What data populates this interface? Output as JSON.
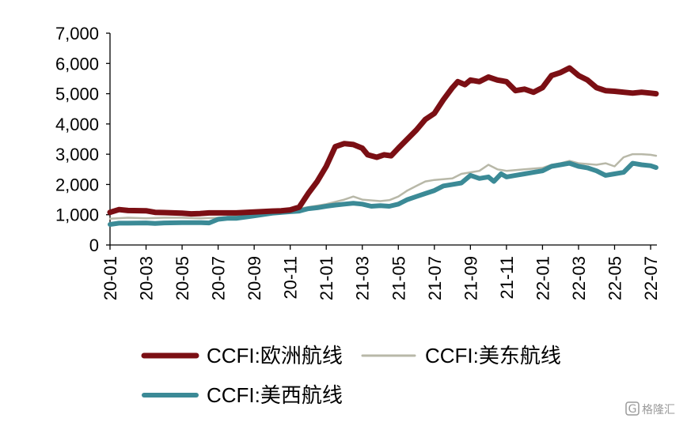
{
  "chart_data": {
    "type": "line",
    "title": "",
    "xlabel": "",
    "ylabel": "",
    "ylim": [
      0,
      7000
    ],
    "yticks": [
      0,
      1000,
      2000,
      3000,
      4000,
      5000,
      6000,
      7000
    ],
    "ytick_labels": [
      "0",
      "1,000",
      "2,000",
      "3,000",
      "4,000",
      "5,000",
      "6,000",
      "7,000"
    ],
    "x_range": [
      "2020-01",
      "2022-07"
    ],
    "xtick_labels": [
      "20-01",
      "20-03",
      "20-05",
      "20-07",
      "20-09",
      "20-11",
      "21-01",
      "21-03",
      "21-05",
      "21-07",
      "21-09",
      "21-11",
      "22-01",
      "22-03",
      "22-05",
      "22-07"
    ],
    "grid": false,
    "legend_position": "bottom",
    "series": [
      {
        "name": "CCFI:欧洲航线",
        "color": "#7b0f14",
        "points": [
          [
            "2020-01",
            1080
          ],
          [
            "2020-01.5",
            1170
          ],
          [
            "2020-02",
            1140
          ],
          [
            "2020-03",
            1130
          ],
          [
            "2020-03.5",
            1080
          ],
          [
            "2020-04",
            1070
          ],
          [
            "2020-05",
            1050
          ],
          [
            "2020-05.5",
            1030
          ],
          [
            "2020-06",
            1040
          ],
          [
            "2020-06.5",
            1060
          ],
          [
            "2020-07",
            1060
          ],
          [
            "2020-08",
            1060
          ],
          [
            "2020-09",
            1090
          ],
          [
            "2020-10",
            1120
          ],
          [
            "2020-10.5",
            1130
          ],
          [
            "2020-11",
            1160
          ],
          [
            "2020-11.5",
            1250
          ],
          [
            "2020-12",
            1700
          ],
          [
            "2020-12.5",
            2100
          ],
          [
            "2021-01",
            2600
          ],
          [
            "2021-01.5",
            3250
          ],
          [
            "2021-02",
            3350
          ],
          [
            "2021-02.5",
            3320
          ],
          [
            "2021-03",
            3200
          ],
          [
            "2021-03.3",
            2980
          ],
          [
            "2021-03.8",
            2900
          ],
          [
            "2021-04.2",
            2980
          ],
          [
            "2021-04.6",
            2950
          ],
          [
            "2021-05",
            3200
          ],
          [
            "2021-05.5",
            3500
          ],
          [
            "2021-06",
            3800
          ],
          [
            "2021-06.5",
            4150
          ],
          [
            "2021-07",
            4350
          ],
          [
            "2021-07.5",
            4800
          ],
          [
            "2021-08",
            5200
          ],
          [
            "2021-08.3",
            5400
          ],
          [
            "2021-08.7",
            5300
          ],
          [
            "2021-09",
            5450
          ],
          [
            "2021-09.5",
            5400
          ],
          [
            "2021-10",
            5550
          ],
          [
            "2021-10.5",
            5450
          ],
          [
            "2021-11",
            5400
          ],
          [
            "2021-11.5",
            5100
          ],
          [
            "2021-12",
            5150
          ],
          [
            "2021-12.5",
            5050
          ],
          [
            "2022-01",
            5200
          ],
          [
            "2022-01.5",
            5600
          ],
          [
            "2022-02",
            5700
          ],
          [
            "2022-02.5",
            5850
          ],
          [
            "2022-03",
            5600
          ],
          [
            "2022-03.5",
            5450
          ],
          [
            "2022-04",
            5200
          ],
          [
            "2022-04.5",
            5100
          ],
          [
            "2022-05",
            5080
          ],
          [
            "2022-05.5",
            5050
          ],
          [
            "2022-06",
            5020
          ],
          [
            "2022-06.5",
            5050
          ],
          [
            "2022-07",
            5020
          ],
          [
            "2022-07.3",
            5000
          ]
        ]
      },
      {
        "name": "CCFI:美东航线",
        "color": "#b8b8a8",
        "points": [
          [
            "2020-01",
            870
          ],
          [
            "2020-02",
            900
          ],
          [
            "2020-03",
            880
          ],
          [
            "2020-04",
            900
          ],
          [
            "2020-05",
            900
          ],
          [
            "2020-06",
            880
          ],
          [
            "2020-07",
            900
          ],
          [
            "2020-08",
            950
          ],
          [
            "2020-09",
            1020
          ],
          [
            "2020-10",
            1100
          ],
          [
            "2020-11",
            1150
          ],
          [
            "2020-12",
            1250
          ],
          [
            "2021-01",
            1350
          ],
          [
            "2021-02",
            1500
          ],
          [
            "2021-02.5",
            1600
          ],
          [
            "2021-03",
            1500
          ],
          [
            "2021-04",
            1450
          ],
          [
            "2021-04.5",
            1480
          ],
          [
            "2021-05",
            1600
          ],
          [
            "2021-05.5",
            1800
          ],
          [
            "2021-06",
            1950
          ],
          [
            "2021-06.5",
            2100
          ],
          [
            "2021-07",
            2150
          ],
          [
            "2021-08",
            2200
          ],
          [
            "2021-08.5",
            2350
          ],
          [
            "2021-09",
            2400
          ],
          [
            "2021-09.5",
            2450
          ],
          [
            "2021-10",
            2650
          ],
          [
            "2021-10.5",
            2500
          ],
          [
            "2021-11",
            2450
          ],
          [
            "2021-12",
            2500
          ],
          [
            "2022-01",
            2550
          ],
          [
            "2022-01.5",
            2650
          ],
          [
            "2022-02",
            2700
          ],
          [
            "2022-02.5",
            2780
          ],
          [
            "2022-03",
            2700
          ],
          [
            "2022-04",
            2650
          ],
          [
            "2022-04.5",
            2700
          ],
          [
            "2022-05",
            2600
          ],
          [
            "2022-05.5",
            2900
          ],
          [
            "2022-06",
            3000
          ],
          [
            "2022-06.5",
            3000
          ],
          [
            "2022-07",
            2980
          ],
          [
            "2022-07.3",
            2950
          ]
        ]
      },
      {
        "name": "CCFI:美西航线",
        "color": "#3b8a96",
        "points": [
          [
            "2020-01",
            680
          ],
          [
            "2020-01.5",
            720
          ],
          [
            "2020-02",
            720
          ],
          [
            "2020-03",
            730
          ],
          [
            "2020-03.5",
            710
          ],
          [
            "2020-04",
            730
          ],
          [
            "2020-05",
            740
          ],
          [
            "2020-06",
            740
          ],
          [
            "2020-06.5",
            730
          ],
          [
            "2020-07",
            850
          ],
          [
            "2020-07.5",
            880
          ],
          [
            "2020-08",
            880
          ],
          [
            "2020-09",
            960
          ],
          [
            "2020-10",
            1050
          ],
          [
            "2020-11",
            1100
          ],
          [
            "2020-11.5",
            1120
          ],
          [
            "2020-12",
            1200
          ],
          [
            "2020-12.5",
            1230
          ],
          [
            "2021-01",
            1280
          ],
          [
            "2021-01.5",
            1320
          ],
          [
            "2021-02",
            1350
          ],
          [
            "2021-02.5",
            1380
          ],
          [
            "2021-03",
            1350
          ],
          [
            "2021-03.5",
            1280
          ],
          [
            "2021-04",
            1300
          ],
          [
            "2021-04.5",
            1280
          ],
          [
            "2021-05",
            1350
          ],
          [
            "2021-05.5",
            1500
          ],
          [
            "2021-06",
            1600
          ],
          [
            "2021-06.5",
            1700
          ],
          [
            "2021-07",
            1800
          ],
          [
            "2021-07.5",
            1950
          ],
          [
            "2021-08",
            2000
          ],
          [
            "2021-08.5",
            2050
          ],
          [
            "2021-09",
            2300
          ],
          [
            "2021-09.5",
            2200
          ],
          [
            "2021-10",
            2250
          ],
          [
            "2021-10.3",
            2100
          ],
          [
            "2021-10.7",
            2350
          ],
          [
            "2021-11",
            2250
          ],
          [
            "2021-11.5",
            2300
          ],
          [
            "2021-12",
            2350
          ],
          [
            "2021-12.5",
            2400
          ],
          [
            "2022-01",
            2450
          ],
          [
            "2022-01.5",
            2600
          ],
          [
            "2022-02",
            2650
          ],
          [
            "2022-02.5",
            2700
          ],
          [
            "2022-03",
            2600
          ],
          [
            "2022-03.5",
            2550
          ],
          [
            "2022-04",
            2450
          ],
          [
            "2022-04.5",
            2300
          ],
          [
            "2022-05",
            2350
          ],
          [
            "2022-05.5",
            2400
          ],
          [
            "2022-06",
            2700
          ],
          [
            "2022-06.5",
            2650
          ],
          [
            "2022-07",
            2620
          ],
          [
            "2022-07.3",
            2560
          ]
        ]
      }
    ]
  },
  "watermark": {
    "text": "格隆汇"
  }
}
